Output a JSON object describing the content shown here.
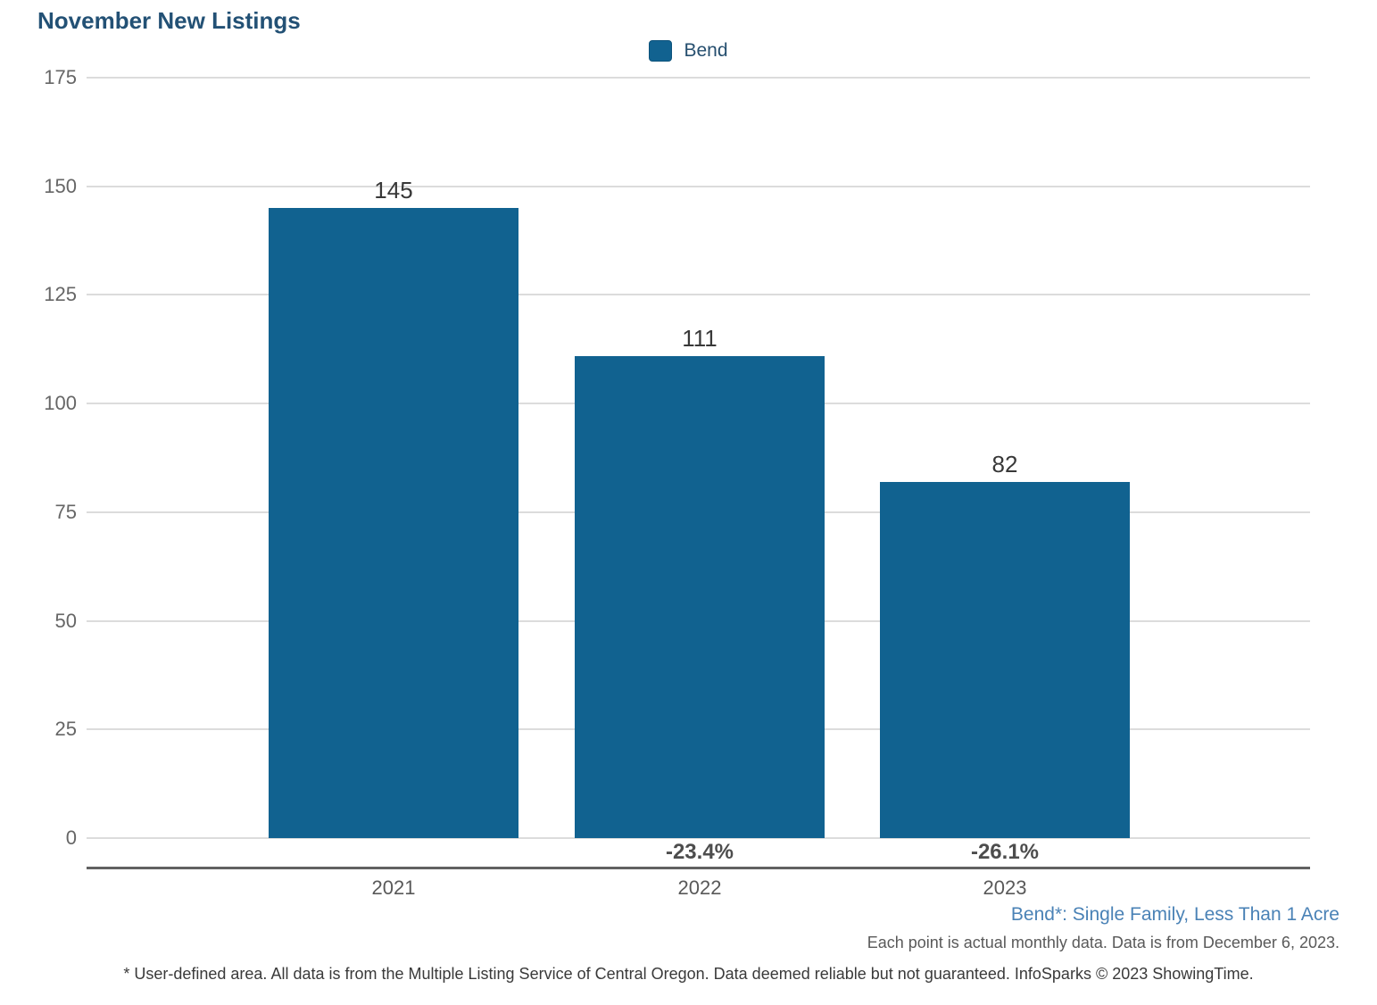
{
  "title": "November New Listings",
  "legend": {
    "label": "Bend",
    "marker_color": "#116290"
  },
  "chart_data": {
    "type": "bar",
    "title": "November New Listings",
    "categories": [
      "2021",
      "2022",
      "2023"
    ],
    "series": [
      {
        "name": "Bend",
        "values": [
          145,
          111,
          82
        ]
      }
    ],
    "value_labels": [
      "145",
      "111",
      "82"
    ],
    "pct_change_labels": [
      "",
      "-23.4%",
      "-26.1%"
    ],
    "ylim": [
      0,
      175
    ],
    "yticks": [
      0,
      25,
      50,
      75,
      100,
      125,
      150,
      175
    ],
    "grid": true,
    "legend_position": "top-center",
    "bar_color": "#116290"
  },
  "footnotes": {
    "series_definition": "Bend*: Single Family, Less Than 1 Acre",
    "data_note": "Each point is actual monthly data. Data is from December 6, 2023.",
    "disclaimer": "* User-defined area. All data is from the Multiple Listing Service of Central Oregon. Data deemed reliable but not guaranteed. InfoSparks © 2023 ShowingTime."
  },
  "colors": {
    "bar": "#116290",
    "title_text": "#235175",
    "gridline": "#dcdcdc",
    "axis_line": "#616161",
    "y_tick_text": "#666666",
    "x_tick_text": "#595959",
    "value_label_text": "#383838",
    "pct_label_text": "#4d4d4d",
    "definition_text": "#4a82b6"
  }
}
